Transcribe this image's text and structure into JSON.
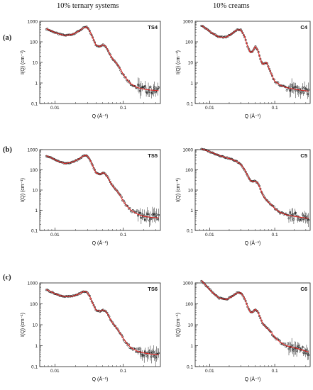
{
  "column_titles": [
    "10% ternary systems",
    "10% creams"
  ],
  "row_labels": [
    "(a)",
    "(b)",
    "(c)"
  ],
  "colors": {
    "fit": "#e8201e",
    "data": "#222222"
  },
  "chart_data": [
    {
      "id": "TS4",
      "type": "scatter",
      "panel_label": "TS4",
      "xscale": "log",
      "yscale": "log",
      "xlim": [
        0.006,
        0.35
      ],
      "ylim": [
        0.1,
        1000
      ],
      "xticks": [
        "0.01",
        "0.1"
      ],
      "yticks": [
        "0.1",
        "1",
        "10",
        "100",
        "1000"
      ],
      "xlabel": "Q (Å⁻¹)",
      "ylabel": "I(Q) (cm⁻¹)",
      "series": [
        {
          "type": "line",
          "x": [
            0.0075,
            0.009,
            0.011,
            0.014,
            0.018,
            0.022,
            0.026,
            0.029,
            0.032,
            0.036,
            0.04,
            0.046,
            0.05,
            0.055,
            0.06,
            0.065,
            0.07,
            0.08,
            0.09,
            0.1,
            0.115,
            0.13,
            0.16,
            0.2,
            0.25,
            0.33
          ],
          "y": [
            430,
            330,
            250,
            205,
            230,
            320,
            470,
            540,
            360,
            150,
            68,
            58,
            72,
            62,
            38,
            22,
            15,
            9,
            5,
            2.6,
            1.4,
            0.9,
            0.6,
            0.5,
            0.45,
            0.42
          ]
        }
      ]
    },
    {
      "id": "C4",
      "type": "scatter",
      "panel_label": "C4",
      "xscale": "log",
      "yscale": "log",
      "xlim": [
        0.006,
        0.35
      ],
      "ylim": [
        0.1,
        1000
      ],
      "xticks": [
        "0.01",
        "0.1"
      ],
      "yticks": [
        "0.1",
        "1",
        "10",
        "100",
        "1000"
      ],
      "xlabel": "Q (Å⁻¹)",
      "ylabel": "I(Q) (cm⁻¹)",
      "series": [
        {
          "type": "line",
          "x": [
            0.0075,
            0.009,
            0.011,
            0.014,
            0.018,
            0.022,
            0.026,
            0.03,
            0.034,
            0.038,
            0.042,
            0.046,
            0.05,
            0.055,
            0.06,
            0.065,
            0.07,
            0.075,
            0.08,
            0.09,
            0.1,
            0.12,
            0.15,
            0.2,
            0.25,
            0.33
          ],
          "y": [
            620,
            420,
            260,
            170,
            170,
            250,
            380,
            390,
            200,
            65,
            30,
            35,
            60,
            40,
            15,
            8,
            9,
            10,
            6,
            2.5,
            1.2,
            0.8,
            0.6,
            0.5,
            0.45,
            0.4
          ]
        }
      ]
    },
    {
      "id": "TS5",
      "type": "scatter",
      "panel_label": "TS5",
      "xscale": "log",
      "yscale": "log",
      "xlim": [
        0.006,
        0.35
      ],
      "ylim": [
        0.1,
        1000
      ],
      "xticks": [
        "0.01",
        "0.1"
      ],
      "yticks": [
        "0.1",
        "1",
        "10",
        "100",
        "1000"
      ],
      "xlabel": "Q (Å⁻¹)",
      "ylabel": "I(Q) (cm⁻¹)",
      "series": [
        {
          "type": "line",
          "x": [
            0.0075,
            0.009,
            0.011,
            0.014,
            0.018,
            0.022,
            0.026,
            0.029,
            0.032,
            0.036,
            0.04,
            0.046,
            0.05,
            0.055,
            0.06,
            0.065,
            0.07,
            0.08,
            0.09,
            0.1,
            0.115,
            0.13,
            0.16,
            0.2,
            0.25,
            0.33
          ],
          "y": [
            500,
            380,
            270,
            205,
            240,
            330,
            480,
            520,
            360,
            150,
            70,
            60,
            72,
            62,
            40,
            24,
            16,
            9.5,
            5.5,
            2.8,
            1.5,
            1.0,
            0.65,
            0.5,
            0.45,
            0.42
          ]
        }
      ]
    },
    {
      "id": "C5",
      "type": "scatter",
      "panel_label": "C5",
      "xscale": "log",
      "yscale": "log",
      "xlim": [
        0.006,
        0.35
      ],
      "ylim": [
        0.1,
        1000
      ],
      "xticks": [
        "0.01",
        "0.1"
      ],
      "yticks": [
        "0.1",
        "1",
        "10",
        "100",
        "1000"
      ],
      "xlabel": "Q (Å⁻¹)",
      "ylabel": "I(Q) (cm⁻¹)",
      "series": [
        {
          "type": "line",
          "x": [
            0.0075,
            0.009,
            0.011,
            0.014,
            0.018,
            0.022,
            0.026,
            0.03,
            0.034,
            0.038,
            0.042,
            0.046,
            0.05,
            0.055,
            0.06,
            0.065,
            0.07,
            0.08,
            0.09,
            0.1,
            0.12,
            0.15,
            0.2,
            0.25,
            0.33
          ],
          "y": [
            1100,
            900,
            700,
            520,
            400,
            330,
            260,
            190,
            110,
            55,
            30,
            26,
            28,
            22,
            12,
            6,
            4,
            2.5,
            1.8,
            1.2,
            0.8,
            0.6,
            0.5,
            0.45,
            0.4
          ]
        }
      ]
    },
    {
      "id": "TS6",
      "type": "scatter",
      "panel_label": "TS6",
      "xscale": "log",
      "yscale": "log",
      "xlim": [
        0.006,
        0.35
      ],
      "ylim": [
        0.1,
        1000
      ],
      "xticks": [
        "0.01",
        "0.1"
      ],
      "yticks": [
        "0.1",
        "1",
        "10",
        "100",
        "1000"
      ],
      "xlabel": "Q (Å⁻¹)",
      "ylabel": "I(Q) (cm⁻¹)",
      "series": [
        {
          "type": "line",
          "x": [
            0.0075,
            0.009,
            0.011,
            0.014,
            0.018,
            0.022,
            0.026,
            0.029,
            0.032,
            0.036,
            0.04,
            0.046,
            0.05,
            0.055,
            0.06,
            0.065,
            0.07,
            0.08,
            0.09,
            0.1,
            0.115,
            0.13,
            0.16,
            0.2,
            0.25,
            0.33
          ],
          "y": [
            480,
            360,
            270,
            220,
            230,
            290,
            380,
            380,
            250,
            100,
            50,
            44,
            52,
            45,
            30,
            18,
            12,
            7,
            4,
            2.2,
            1.2,
            0.8,
            0.55,
            0.45,
            0.4,
            0.38
          ]
        }
      ]
    },
    {
      "id": "C6",
      "type": "scatter",
      "panel_label": "C6",
      "xscale": "log",
      "yscale": "log",
      "xlim": [
        0.006,
        0.35
      ],
      "ylim": [
        0.1,
        1000
      ],
      "xticks": [
        "0.01",
        "0.1"
      ],
      "yticks": [
        "0.1",
        "1",
        "10",
        "100",
        "1000"
      ],
      "xlabel": "Q (Å⁻¹)",
      "ylabel": "I(Q) (cm⁻¹)",
      "series": [
        {
          "type": "line",
          "x": [
            0.0075,
            0.009,
            0.011,
            0.014,
            0.018,
            0.022,
            0.026,
            0.03,
            0.034,
            0.038,
            0.042,
            0.046,
            0.05,
            0.055,
            0.06,
            0.065,
            0.07,
            0.075,
            0.08,
            0.09,
            0.1,
            0.12,
            0.15,
            0.2,
            0.25,
            0.33
          ],
          "y": [
            1300,
            700,
            350,
            190,
            160,
            220,
            330,
            340,
            200,
            80,
            40,
            40,
            55,
            42,
            22,
            12,
            9,
            7,
            6,
            4,
            2.5,
            1.5,
            1.0,
            0.8,
            0.65,
            0.5
          ]
        }
      ]
    }
  ]
}
